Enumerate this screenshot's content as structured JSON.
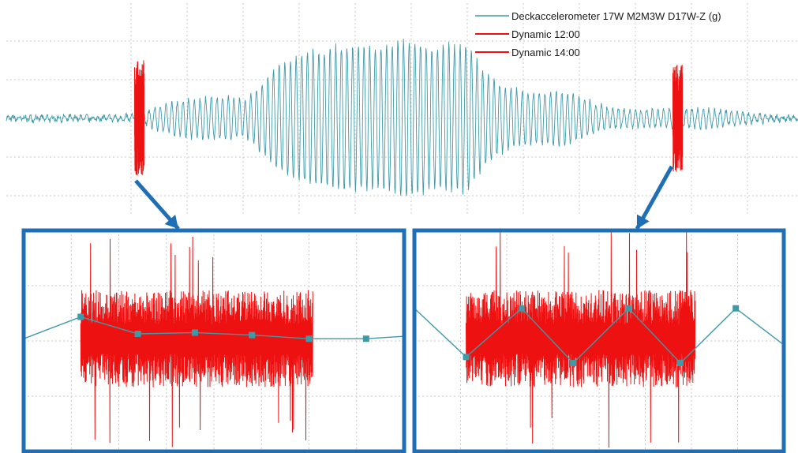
{
  "colors": {
    "accel": "#3f9aa8",
    "dynamic": "#ee1111",
    "highlight": "#1f6fb6",
    "grid": "#c8c8c8",
    "marker": "#3f9aa8"
  },
  "chart_data": [
    {
      "type": "line",
      "panel": "overview",
      "title": "",
      "xlabel": "",
      "ylabel": "",
      "grid": true,
      "legend_placement": "top-right",
      "legend": [
        "Deckaccelerometer 17W M2M3W D17W-Z (g)",
        "Dynamic 12:00",
        "Dynamic 14:00"
      ],
      "series": [
        {
          "name": "Deckaccelerometer 17W M2M3W D17W-Z (g)",
          "envelope": [
            [
              0,
              0.02
            ],
            [
              0.16,
              0.04
            ],
            [
              0.2,
              0.14
            ],
            [
              0.28,
              0.3
            ],
            [
              0.3,
              0.25
            ],
            [
              0.34,
              0.6
            ],
            [
              0.4,
              0.7
            ],
            [
              0.45,
              1.0
            ],
            [
              0.5,
              1.0
            ],
            [
              0.54,
              0.7
            ],
            [
              0.58,
              0.8
            ],
            [
              0.62,
              0.5
            ],
            [
              0.66,
              0.35
            ],
            [
              0.7,
              0.28
            ],
            [
              0.76,
              0.12
            ],
            [
              0.84,
              0.12
            ],
            [
              1.0,
              0.02
            ]
          ]
        },
        {
          "name": "Dynamic 12:00",
          "burst_center": 0.168,
          "amplitude": 0.92
        },
        {
          "name": "Dynamic 14:00",
          "burst_center": 0.848,
          "amplitude": 0.85
        }
      ]
    },
    {
      "type": "line",
      "panel": "zoom-left",
      "grid": true,
      "series": [
        {
          "name": "Deckaccelerometer 17W M2M3W D17W-Z (g)",
          "x": [
            0,
            0.15,
            0.3,
            0.45,
            0.6,
            0.75,
            0.9,
            1.0
          ],
          "y": [
            0.0,
            0.18,
            0.04,
            0.05,
            0.03,
            0.0,
            0.0,
            0.02
          ]
        },
        {
          "name": "Dynamic 12:00",
          "x_start": 0.15,
          "x_end": 0.76
        }
      ]
    },
    {
      "type": "line",
      "panel": "zoom-right",
      "grid": true,
      "series": [
        {
          "name": "Deckaccelerometer 17W M2M3W D17W-Z (g)",
          "x": [
            0,
            0.14,
            0.29,
            0.43,
            0.58,
            0.72,
            0.87,
            1.0
          ],
          "y": [
            0.25,
            -0.15,
            0.25,
            -0.2,
            0.25,
            -0.2,
            0.25,
            -0.05
          ]
        },
        {
          "name": "Dynamic 14:00",
          "x_start": 0.14,
          "x_end": 0.76
        }
      ]
    }
  ]
}
